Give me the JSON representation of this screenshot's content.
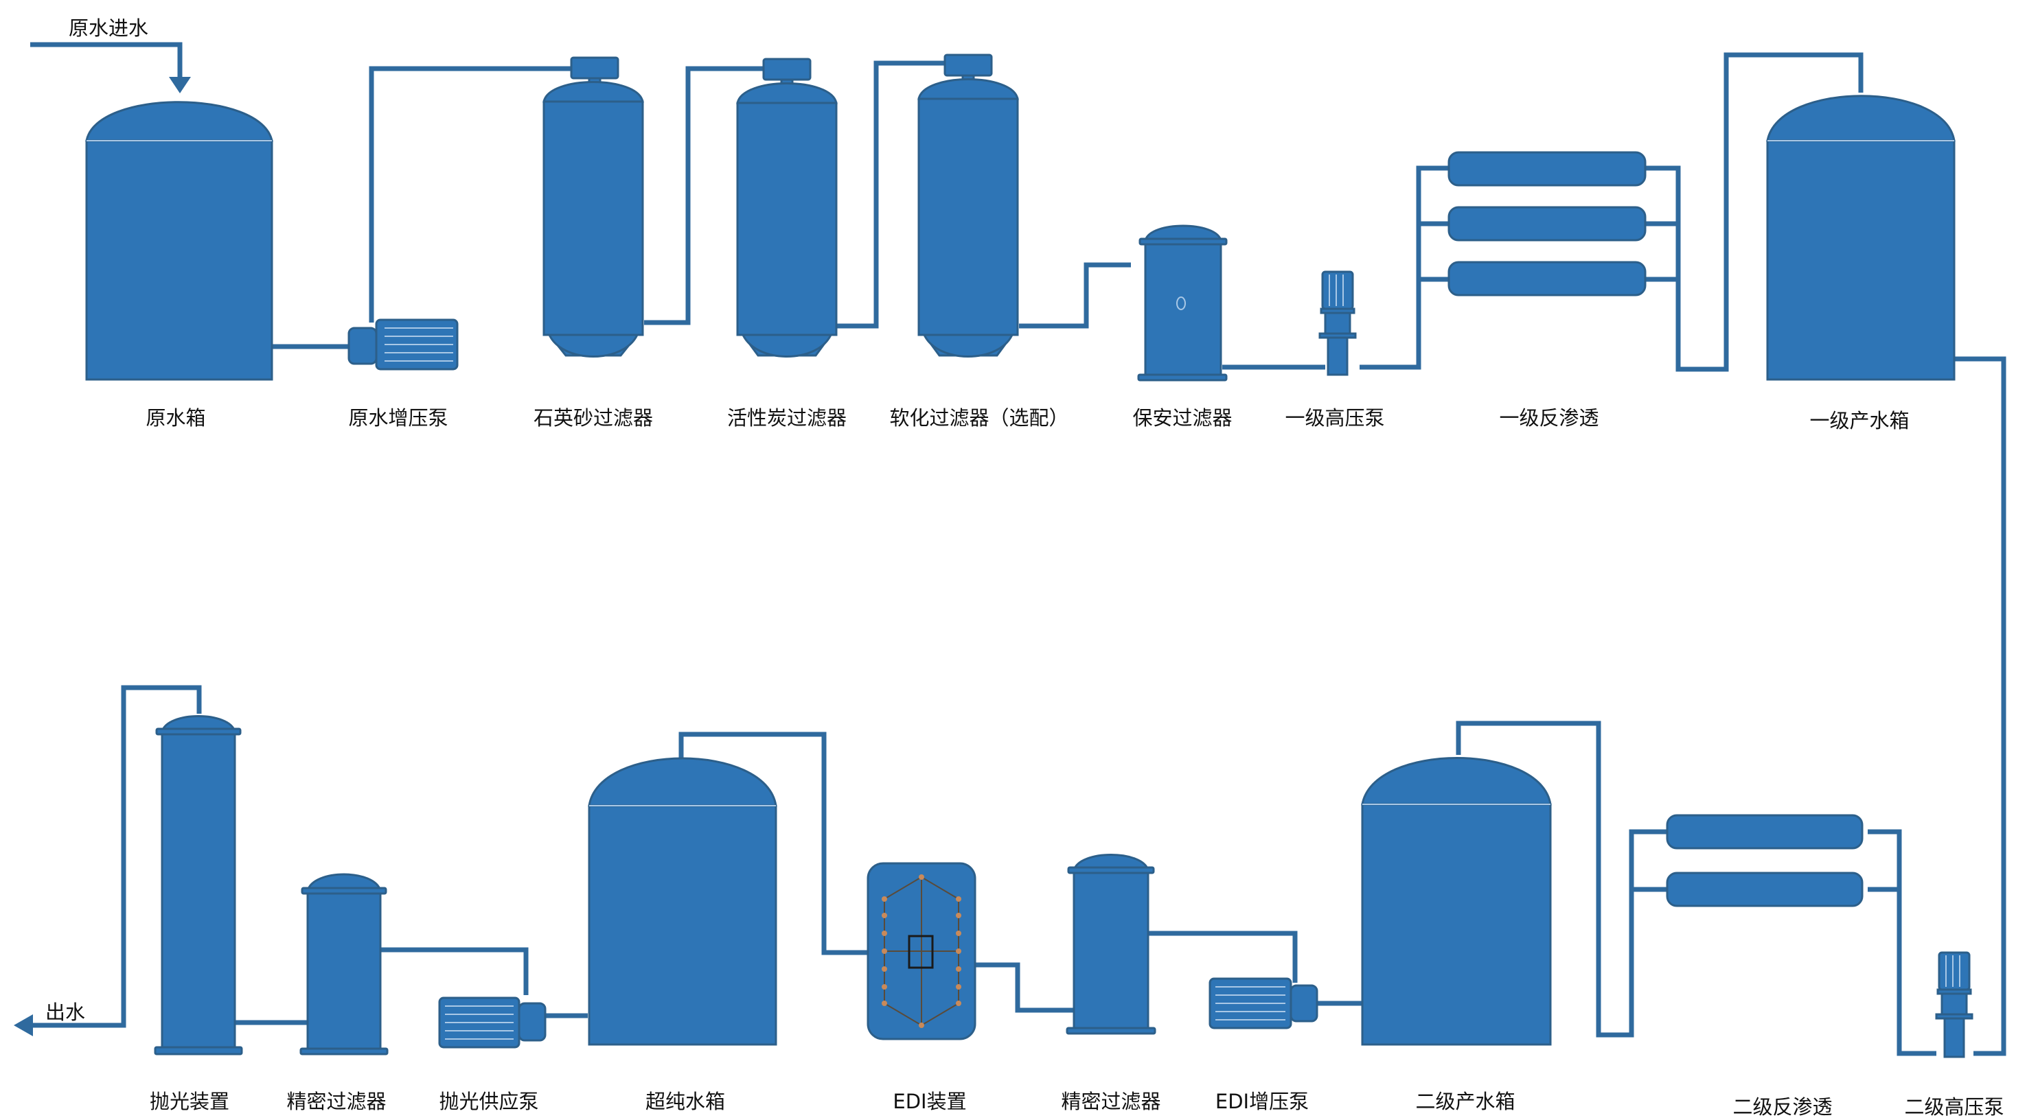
{
  "colors": {
    "fill": "#2e75b6",
    "stroke": "#2c5f8a",
    "pipe": "#2f6a9e",
    "text": "#111111"
  },
  "labels": {
    "raw_water_in": "原水进水",
    "raw_tank": "原水箱",
    "raw_booster_pump": "原水增压泵",
    "quartz_sand_filter": "石英砂过滤器",
    "activated_carbon_filter": "活性炭过滤器",
    "softening_filter": "软化过滤器（选配）",
    "security_filter": "保安过滤器",
    "primary_hp_pump": "一级高压泵",
    "primary_ro": "一级反渗透",
    "primary_product_tank": "一级产水箱",
    "secondary_ro": "二级反渗透",
    "secondary_hp_pump": "二级高压泵",
    "secondary_product_tank": "二级产水箱",
    "edi_booster_pump": "EDI增压泵",
    "precision_filter_2": "精密过滤器",
    "edi_device": "EDI装置",
    "ultrapure_tank": "超纯水箱",
    "polish_supply_pump": "抛光供应泵",
    "precision_filter_1": "精密过滤器",
    "polishing_device": "抛光装置",
    "water_out": "出水"
  }
}
